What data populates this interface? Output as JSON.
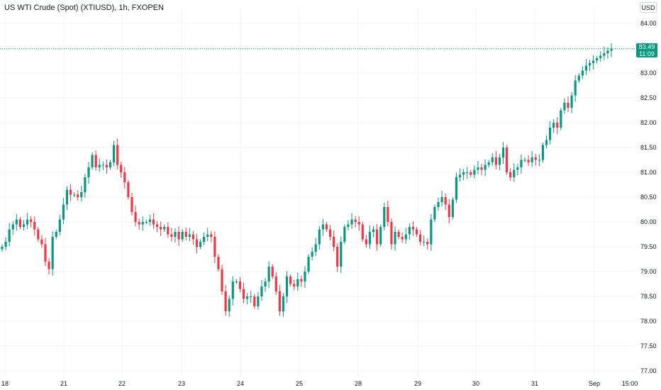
{
  "header": {
    "symbol_title": "US WTI Crude (Spot) (XTIUSD), 1h, FXOPEN",
    "currency": "USD"
  },
  "price_badge": {
    "price": "83.49",
    "countdown": "11:09"
  },
  "colors": {
    "up": "#089981",
    "down": "#f23645",
    "last_price_line": "#089981",
    "background": "#ffffff",
    "grid": "#f0f3fa"
  },
  "chart_data": {
    "type": "candlestick",
    "title": "US WTI Crude (Spot) (XTIUSD), 1h, FXOPEN",
    "ylim": [
      77.0,
      84.0
    ],
    "y_ticks": [
      "84.00",
      "83.50",
      "83.00",
      "82.50",
      "82.00",
      "81.50",
      "81.00",
      "80.50",
      "80.00",
      "79.50",
      "79.00",
      "78.50",
      "78.00",
      "77.50",
      "77.00"
    ],
    "x_ticks": [
      "18",
      "21",
      "22",
      "23",
      "24",
      "25",
      "28",
      "29",
      "30",
      "31",
      "Sep",
      "15:00"
    ],
    "last_price": 83.49,
    "grid": true,
    "candle_closes": [
      79.5,
      79.6,
      79.85,
      79.95,
      80.05,
      79.9,
      79.95,
      80.05,
      80.0,
      79.85,
      79.65,
      79.55,
      79.2,
      79.05,
      79.7,
      79.8,
      80.05,
      80.35,
      80.65,
      80.55,
      80.55,
      80.5,
      80.6,
      80.9,
      81.1,
      81.35,
      81.1,
      81.15,
      81.15,
      81.1,
      81.2,
      81.55,
      81.15,
      81.0,
      80.8,
      80.5,
      80.2,
      80.0,
      79.95,
      80.0,
      80.0,
      80.05,
      79.95,
      79.9,
      79.85,
      79.9,
      79.75,
      79.7,
      79.8,
      79.65,
      79.8,
      79.7,
      79.75,
      79.65,
      79.5,
      79.6,
      79.7,
      79.75,
      79.7,
      79.3,
      79.05,
      78.6,
      78.2,
      78.45,
      78.8,
      78.8,
      78.65,
      78.45,
      78.5,
      78.5,
      78.3,
      78.5,
      78.7,
      78.8,
      79.1,
      78.9,
      78.6,
      78.2,
      78.5,
      78.9,
      78.75,
      78.7,
      78.85,
      78.8,
      79.0,
      79.3,
      79.4,
      79.55,
      79.85,
      79.95,
      79.85,
      79.7,
      79.5,
      79.1,
      79.6,
      79.9,
      79.95,
      80.05,
      80.0,
      79.95,
      79.65,
      79.55,
      79.8,
      79.85,
      79.55,
      79.9,
      80.3,
      80.0,
      79.55,
      79.8,
      79.7,
      79.65,
      79.75,
      79.9,
      79.85,
      79.75,
      79.6,
      79.6,
      79.55,
      80.05,
      80.3,
      80.4,
      80.5,
      80.35,
      80.1,
      80.45,
      80.9,
      80.95,
      81.0,
      81.0,
      80.95,
      81.05,
      81.1,
      81.05,
      81.15,
      81.2,
      81.3,
      81.15,
      81.3,
      81.5,
      81.0,
      80.9,
      81.05,
      81.1,
      81.25,
      81.25,
      81.2,
      81.3,
      81.25,
      81.25,
      81.55,
      81.65,
      81.9,
      82.0,
      81.9,
      82.25,
      82.4,
      82.3,
      82.55,
      82.85,
      82.95,
      83.05,
      83.15,
      83.2,
      83.25,
      83.3,
      83.35,
      83.4,
      83.45,
      83.49
    ]
  }
}
